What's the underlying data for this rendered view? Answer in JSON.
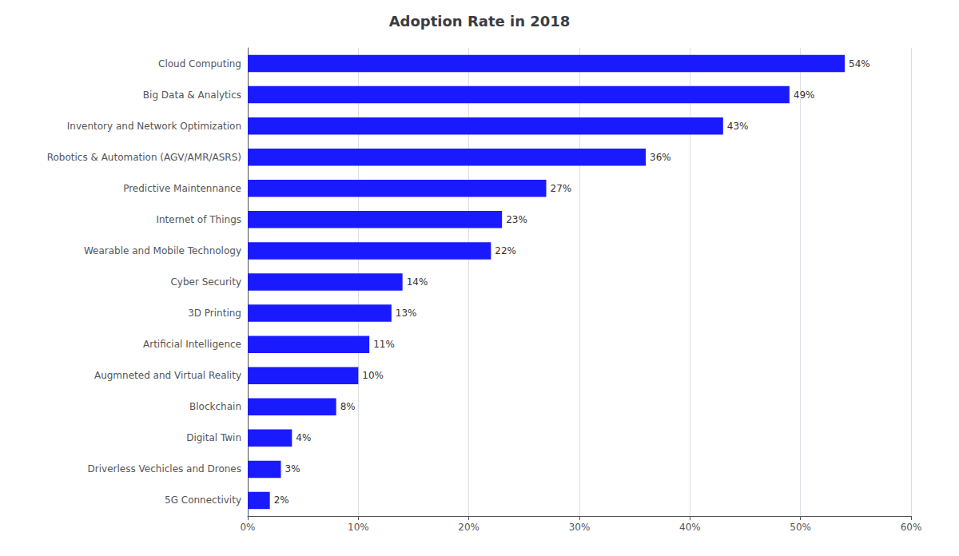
{
  "chart_data": {
    "type": "bar",
    "orientation": "horizontal",
    "title": "Adoption Rate in 2018",
    "categories": [
      "Cloud Computing",
      "Big Data & Analytics",
      "Inventory and Network Optimization",
      "Robotics & Automation (AGV/AMR/ASRS)",
      "Predictive Maintennance",
      "Internet of Things",
      "Wearable and Mobile Technology",
      "Cyber Security",
      "3D Printing",
      "Artificial Intelligence",
      "Augmneted and Virtual Reality",
      "Blockchain",
      "Digital Twin",
      "Driverless Vechicles and Drones",
      "5G Connectivity"
    ],
    "values": [
      54,
      49,
      43,
      36,
      27,
      23,
      22,
      14,
      13,
      11,
      10,
      8,
      4,
      3,
      2
    ],
    "value_labels": [
      "54%",
      "49%",
      "43%",
      "36%",
      "27%",
      "23%",
      "22%",
      "14%",
      "13%",
      "11%",
      "10%",
      "8%",
      "4%",
      "3%",
      "2%"
    ],
    "color": "#1a1aff",
    "xlim": [
      0,
      60
    ],
    "xticks": [
      {
        "value": 0,
        "label": "0%"
      },
      {
        "value": 10,
        "label": "10%"
      },
      {
        "value": 20,
        "label": "20%"
      },
      {
        "value": 30,
        "label": "30%"
      },
      {
        "value": 40,
        "label": "40%"
      },
      {
        "value": 50,
        "label": "50%"
      },
      {
        "value": 60,
        "label": "60%"
      }
    ],
    "grid": true,
    "data_labels": true
  }
}
